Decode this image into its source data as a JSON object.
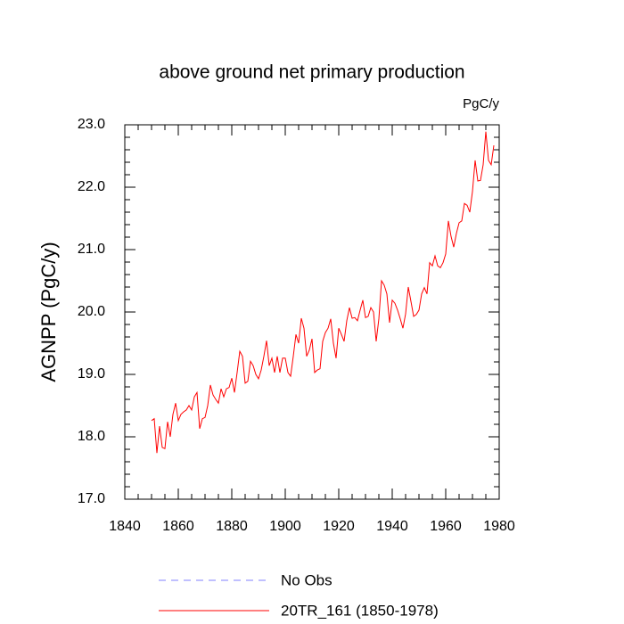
{
  "chart_data": {
    "type": "line",
    "title": "above ground net primary production",
    "units_label": "PgC/y",
    "ylabel": "AGNPP  (PgC/y)",
    "x": [
      1850,
      1851,
      1852,
      1853,
      1854,
      1855,
      1856,
      1857,
      1858,
      1859,
      1860,
      1861,
      1862,
      1863,
      1864,
      1865,
      1866,
      1867,
      1868,
      1869,
      1870,
      1871,
      1872,
      1873,
      1874,
      1875,
      1876,
      1877,
      1878,
      1879,
      1880,
      1881,
      1882,
      1883,
      1884,
      1885,
      1886,
      1887,
      1888,
      1889,
      1890,
      1891,
      1892,
      1893,
      1894,
      1895,
      1896,
      1897,
      1898,
      1899,
      1900,
      1901,
      1902,
      1903,
      1904,
      1905,
      1906,
      1907,
      1908,
      1909,
      1910,
      1911,
      1912,
      1913,
      1914,
      1915,
      1916,
      1917,
      1918,
      1919,
      1920,
      1921,
      1922,
      1923,
      1924,
      1925,
      1926,
      1927,
      1928,
      1929,
      1930,
      1931,
      1932,
      1933,
      1934,
      1935,
      1936,
      1937,
      1938,
      1939,
      1940,
      1941,
      1942,
      1943,
      1944,
      1945,
      1946,
      1947,
      1948,
      1949,
      1950,
      1951,
      1952,
      1953,
      1954,
      1955,
      1956,
      1957,
      1958,
      1959,
      1960,
      1961,
      1962,
      1963,
      1964,
      1965,
      1966,
      1967,
      1968,
      1969,
      1970,
      1971,
      1972,
      1973,
      1974,
      1975,
      1976,
      1977,
      1978
    ],
    "series": [
      {
        "name": "No Obs",
        "color": "#8080ff",
        "dashed": true,
        "values": [
          null,
          null,
          null,
          null,
          null,
          null,
          null,
          null,
          null,
          null,
          null,
          null,
          null,
          null,
          null,
          null,
          null,
          null,
          null,
          null,
          null,
          null,
          null,
          null,
          null,
          null,
          null,
          null,
          null,
          null,
          null,
          null,
          null,
          null,
          null,
          null,
          null,
          null,
          null,
          null,
          null,
          null,
          null,
          null,
          null,
          null,
          null,
          null,
          null,
          null,
          null,
          null,
          null,
          null,
          null,
          null,
          null,
          null,
          null,
          null,
          null,
          null,
          null,
          null,
          null,
          null,
          null,
          null,
          null,
          null,
          null,
          null,
          null,
          null,
          null,
          null,
          null,
          null,
          null,
          null,
          null,
          null,
          null,
          null,
          null,
          null,
          null,
          null,
          null,
          null,
          null,
          null,
          null,
          null,
          null,
          null,
          null,
          null,
          null,
          null,
          null,
          null,
          null,
          null,
          null,
          null,
          null,
          null,
          null,
          null,
          null,
          null,
          null,
          null,
          null,
          null,
          null,
          null,
          null,
          null,
          null,
          null,
          null,
          null,
          null,
          null,
          null,
          null,
          null
        ]
      },
      {
        "name": "20TR_161 (1850-1978)",
        "color": "#ff0000",
        "dashed": false,
        "values": [
          18.26,
          18.29,
          17.74,
          18.17,
          17.83,
          17.81,
          18.24,
          18.0,
          18.36,
          18.54,
          18.26,
          18.36,
          18.4,
          18.43,
          18.5,
          18.43,
          18.64,
          18.71,
          18.13,
          18.29,
          18.31,
          18.5,
          18.83,
          18.67,
          18.6,
          18.54,
          18.77,
          18.64,
          18.77,
          18.79,
          18.94,
          18.71,
          19.03,
          19.37,
          19.29,
          18.86,
          18.89,
          19.21,
          19.14,
          19.0,
          18.93,
          19.07,
          19.29,
          19.54,
          19.14,
          19.26,
          19.03,
          19.29,
          19.03,
          19.26,
          19.26,
          19.03,
          18.97,
          19.29,
          19.64,
          19.5,
          19.9,
          19.74,
          19.29,
          19.39,
          19.57,
          19.03,
          19.07,
          19.09,
          19.53,
          19.67,
          19.74,
          19.89,
          19.5,
          19.26,
          19.74,
          19.64,
          19.53,
          19.86,
          20.07,
          19.9,
          19.91,
          19.86,
          20.03,
          20.19,
          19.91,
          19.93,
          20.07,
          20.0,
          19.53,
          19.89,
          20.5,
          20.43,
          20.29,
          19.83,
          20.19,
          20.14,
          20.03,
          19.89,
          19.74,
          19.97,
          20.4,
          20.17,
          19.93,
          19.96,
          20.03,
          20.29,
          20.39,
          20.29,
          20.79,
          20.74,
          20.9,
          20.74,
          20.71,
          20.79,
          20.93,
          21.46,
          21.21,
          21.04,
          21.26,
          21.43,
          21.46,
          21.74,
          21.71,
          21.6,
          21.93,
          22.43,
          22.1,
          22.11,
          22.36,
          22.89,
          22.43,
          22.36,
          22.67
        ]
      }
    ],
    "xlim": [
      1840,
      1980
    ],
    "xticks": [
      1840,
      1860,
      1880,
      1900,
      1920,
      1940,
      1960,
      1980
    ],
    "xminorticks": [
      1845,
      1850,
      1855,
      1865,
      1870,
      1875,
      1885,
      1890,
      1895,
      1905,
      1910,
      1915,
      1925,
      1930,
      1935,
      1945,
      1950,
      1955,
      1965,
      1970,
      1975
    ],
    "ylim": [
      17,
      23
    ],
    "yticks": [
      {
        "value": 17,
        "label": "17.0"
      },
      {
        "value": 18,
        "label": "18.0"
      },
      {
        "value": 19,
        "label": "19.0"
      },
      {
        "value": 20,
        "label": "20.0"
      },
      {
        "value": 21,
        "label": "21.0"
      },
      {
        "value": 22,
        "label": "22.0"
      },
      {
        "value": 23,
        "label": "23.0"
      }
    ],
    "yminorticks": [
      17.2,
      17.4,
      17.6,
      17.8,
      18.2,
      18.4,
      18.6,
      18.8,
      19.2,
      19.4,
      19.6,
      19.8,
      20.2,
      20.4,
      20.6,
      20.8,
      21.2,
      21.4,
      21.6,
      21.8,
      22.2,
      22.4,
      22.6,
      22.8
    ]
  }
}
